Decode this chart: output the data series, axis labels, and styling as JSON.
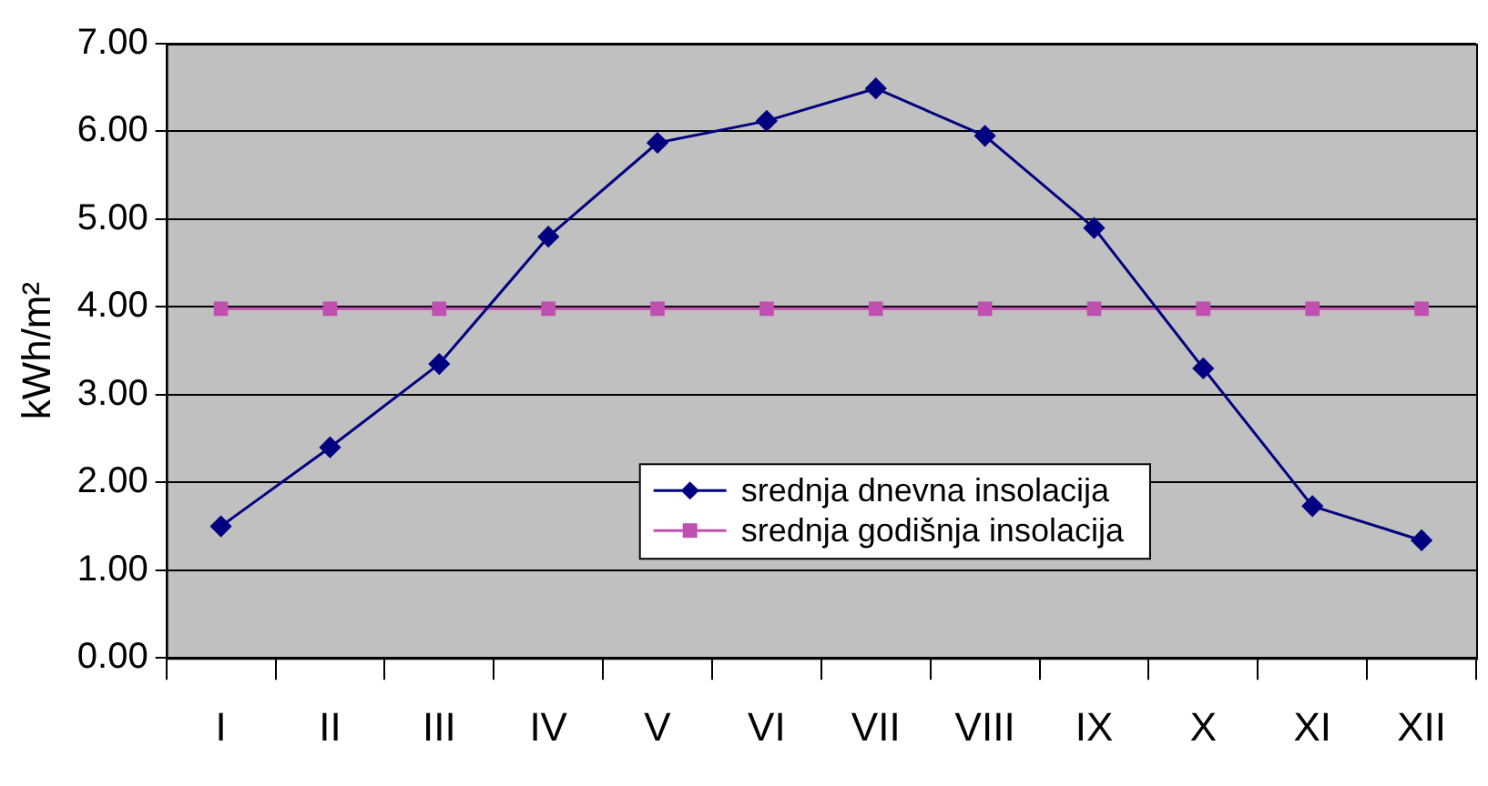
{
  "chart_data": {
    "type": "line",
    "ylabel": "kWh/m²",
    "categories": [
      "I",
      "II",
      "III",
      "IV",
      "V",
      "VI",
      "VII",
      "VIII",
      "IX",
      "X",
      "XI",
      "XII"
    ],
    "series": [
      {
        "name": "srednja dnevna insolacija",
        "color": "#000080",
        "marker": "diamond",
        "values": [
          1.5,
          2.4,
          3.35,
          4.8,
          5.87,
          6.12,
          6.49,
          5.95,
          4.9,
          3.3,
          1.73,
          1.34
        ]
      },
      {
        "name": "srednja godišnja insolacija",
        "color": "#c050b0",
        "marker": "square",
        "values": [
          3.98,
          3.98,
          3.98,
          3.98,
          3.98,
          3.98,
          3.98,
          3.98,
          3.98,
          3.98,
          3.98,
          3.98
        ]
      }
    ],
    "ylim": [
      0,
      7
    ],
    "yticks": [
      {
        "value": 0,
        "label": "0.00"
      },
      {
        "value": 1,
        "label": "1.00"
      },
      {
        "value": 2,
        "label": "2.00"
      },
      {
        "value": 3,
        "label": "3.00"
      },
      {
        "value": 4,
        "label": "4.00"
      },
      {
        "value": 5,
        "label": "5.00"
      },
      {
        "value": 6,
        "label": "6.00"
      },
      {
        "value": 7,
        "label": "7.00"
      }
    ],
    "grid": "y",
    "legend": "bottom"
  }
}
